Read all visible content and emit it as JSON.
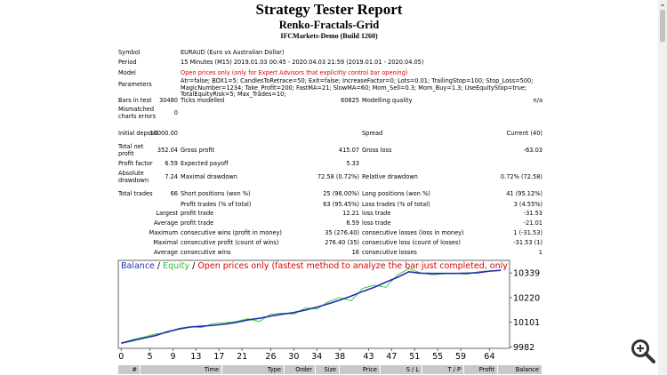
{
  "header": {
    "title": "Strategy Tester Report",
    "subtitle": "Renko-Fractals-Grid",
    "server": "IFCMarkets-Demo (Build 1260)"
  },
  "info": [
    {
      "label": "Symbol",
      "value": "EURAUD (Euro vs Australian Dollar)"
    },
    {
      "label": "Period",
      "value": "15 Minutes (M15) 2019.01.03 00:45 - 2020.04.03 21:59 (2019.01.01 - 2020.04.05)"
    },
    {
      "label": "Model",
      "value": "Open prices only (only for Expert Advisors that explicitly control bar opening)",
      "color": "#e00000"
    },
    {
      "label": "Parameters",
      "value": "Atr=false; BOX1=5; CandlesToRetrace=50; Exit=false; IncreaseFactor=0; Lots=0.01; TrailingStop=100; Stop_Loss=500; MagicNumber=1234; Take_Profit=200; FastMA=21; SlowMA=60; Mom_Sell=0.3; Mom_Buy=1.3; UseEquityStop=true; TotalEquityRisk=5; Max_Trades=10;"
    }
  ],
  "stats": {
    "rows": [
      [
        "Bars in test",
        "30480",
        "Ticks modelled",
        "60825",
        "Modelling quality",
        "n/a"
      ],
      [
        "Mismatched charts errors",
        "0",
        null,
        null,
        null,
        null
      ],
      [
        "Initial deposit",
        "10000.00",
        null,
        null,
        "Spread",
        "Current (40)"
      ],
      [
        "Total net profit",
        "352.04",
        "Gross profit",
        "415.07",
        "Gross loss",
        "-63.03"
      ],
      [
        "Profit factor",
        "6.59",
        "Expected payoff",
        "5.33",
        null,
        null
      ],
      [
        "Absolute drawdown",
        "7.24",
        "Maximal drawdown",
        "72.58 (0.72%)",
        "Relative drawdown",
        "0.72% (72.58)"
      ],
      [
        "Total trades",
        "66",
        "Short positions (won %)",
        "25 (96.00%)",
        "Long positions (won %)",
        "41 (95.12%)"
      ],
      [
        null,
        null,
        "Profit trades (% of total)",
        "63 (95.45%)",
        "Loss trades (% of total)",
        "3 (4.55%)"
      ],
      [
        null,
        "Largest",
        "profit trade",
        "12.21",
        "loss trade",
        "-31.53"
      ],
      [
        null,
        "Average",
        "profit trade",
        "6.59",
        "loss trade",
        "-21.01"
      ],
      [
        null,
        "Maximum",
        "consecutive wins (profit in money)",
        "35 (276.40)",
        "consecutive losses (loss in money)",
        "1 (-31.53)"
      ],
      [
        null,
        "Maximal",
        "consecutive profit (count of wins)",
        "276.40 (35)",
        "consecutive loss (count of losses)",
        "-31.53 (1)"
      ],
      [
        null,
        "Average",
        "consecutive wins",
        "16",
        "consecutive losses",
        "1"
      ]
    ]
  },
  "chart_data": {
    "type": "line",
    "note": "Open prices only (fastest method to analyze the bar just completed, only for EAs that explicitly control bar opening)",
    "note_color": "#e00000",
    "legend_separator": "/",
    "x": [
      0,
      2,
      4,
      6,
      8,
      10,
      12,
      14,
      16,
      18,
      20,
      22,
      24,
      26,
      28,
      30,
      32,
      34,
      36,
      38,
      40,
      42,
      44,
      46,
      48,
      50,
      52,
      54,
      56,
      58,
      60,
      62,
      64,
      66
    ],
    "series": [
      {
        "name": "Balance",
        "color": "#1f2fb0",
        "values": [
          10000,
          10012,
          10025,
          10037,
          10055,
          10068,
          10078,
          10082,
          10086,
          10092,
          10100,
          10112,
          10120,
          10131,
          10140,
          10148,
          10160,
          10174,
          10190,
          10208,
          10228,
          10250,
          10270,
          10295,
          10318,
          10345,
          10338,
          10337,
          10337,
          10337,
          10338,
          10340,
          10348,
          10352
        ]
      },
      {
        "name": "Equity",
        "color": "#2fbf2f",
        "values": [
          10000,
          10018,
          10030,
          10045,
          10050,
          10072,
          10080,
          10075,
          10095,
          10098,
          10105,
          10118,
          10105,
          10140,
          10145,
          10140,
          10170,
          10165,
          10200,
          10220,
          10205,
          10265,
          10280,
          10270,
          10330,
          10360,
          10340,
          10330,
          10335,
          10338,
          10332,
          10345,
          10350,
          10352
        ]
      }
    ],
    "xlim": [
      -0.5,
      67.5
    ],
    "ylim": [
      9975,
      10400
    ],
    "xticks": [
      0,
      5,
      9,
      13,
      17,
      21,
      26,
      30,
      34,
      38,
      43,
      47,
      51,
      55,
      59,
      64
    ],
    "yticks": [
      9982,
      10101,
      10220,
      10339
    ],
    "grid": false
  },
  "trades_table": {
    "columns": [
      "#",
      "Time",
      "Type",
      "Order",
      "Size",
      "Price",
      "S / L",
      "T / P",
      "Profit",
      "Balance"
    ]
  }
}
